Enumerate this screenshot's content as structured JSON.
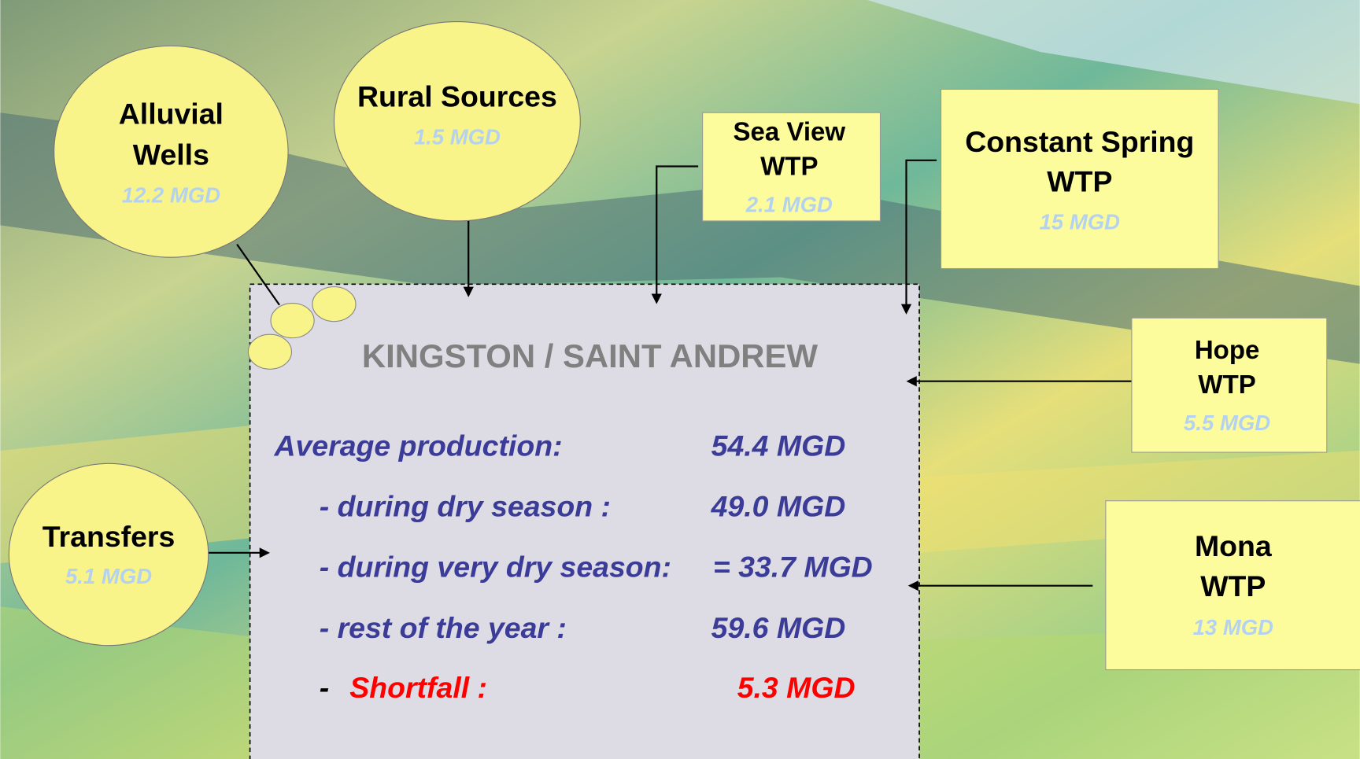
{
  "sources": [
    {
      "label": [
        "Alluvial",
        "Wells"
      ],
      "value": "12.2 MGD"
    },
    {
      "label": [
        "Rural Sources"
      ],
      "value": "1.5 MGD"
    },
    {
      "label": [
        "Sea View",
        "WTP"
      ],
      "value": "2.1 MGD"
    },
    {
      "label": [
        "Constant Spring",
        "WTP"
      ],
      "value": "15 MGD"
    },
    {
      "label": [
        "Hope",
        "WTP"
      ],
      "value": "5.5 MGD"
    },
    {
      "label": [
        "Mona",
        "WTP"
      ],
      "value": "13 MGD"
    },
    {
      "label": [
        "Transfers"
      ],
      "value": "5.1 MGD"
    }
  ],
  "center": {
    "title": "KINGSTON / SAINT ANDREW",
    "rows": [
      {
        "label": "Average production:",
        "value": "54.4 MGD"
      },
      {
        "label": "- during dry season :",
        "value": "49.0 MGD"
      },
      {
        "label": "- during very dry season:",
        "value": "= 33.7 MGD"
      },
      {
        "label": "- rest of the year :",
        "value": "59.6 MGD"
      }
    ],
    "shortfall": {
      "dash": "-",
      "label": "Shortfall :",
      "value": "5.3 MGD"
    }
  }
}
